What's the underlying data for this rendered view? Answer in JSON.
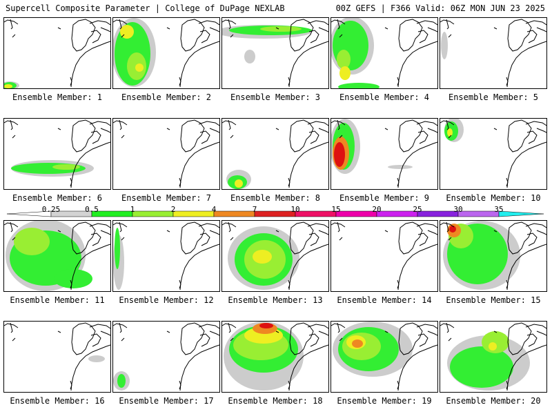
{
  "header": {
    "left": "Supercell Composite Parameter | College of DuPage NEXLAB",
    "right": "00Z GEFS | F366 Valid: 06Z MON JUN 23 2025"
  },
  "panels": [
    {
      "member": 1,
      "caption": "Ensemble Member: 1"
    },
    {
      "member": 2,
      "caption": "Ensemble Member: 2"
    },
    {
      "member": 3,
      "caption": "Ensemble Member: 3"
    },
    {
      "member": 4,
      "caption": "Ensemble Member: 4"
    },
    {
      "member": 5,
      "caption": "Ensemble Member: 5"
    },
    {
      "member": 6,
      "caption": "Ensemble Member: 6"
    },
    {
      "member": 7,
      "caption": "Ensemble Member: 7"
    },
    {
      "member": 8,
      "caption": "Ensemble Member: 8"
    },
    {
      "member": 9,
      "caption": "Ensemble Member: 9"
    },
    {
      "member": 10,
      "caption": "Ensemble Member: 10"
    },
    {
      "member": 11,
      "caption": "Ensemble Member: 11"
    },
    {
      "member": 12,
      "caption": "Ensemble Member: 12"
    },
    {
      "member": 13,
      "caption": "Ensemble Member: 13"
    },
    {
      "member": 14,
      "caption": "Ensemble Member: 14"
    },
    {
      "member": 15,
      "caption": "Ensemble Member: 15"
    },
    {
      "member": 16,
      "caption": "Ensemble Member: 16"
    },
    {
      "member": 17,
      "caption": "Ensemble Member: 17"
    },
    {
      "member": 18,
      "caption": "Ensemble Member: 18"
    },
    {
      "member": 19,
      "caption": "Ensemble Member: 19"
    },
    {
      "member": 20,
      "caption": "Ensemble Member: 20"
    }
  ],
  "colorbar": {
    "labels": [
      "0.25",
      "0.5",
      "1",
      "2",
      "4",
      "7",
      "10",
      "15",
      "20",
      "25",
      "30",
      "35"
    ],
    "colors": [
      "#d3d3d3",
      "#22ee22",
      "#99ee33",
      "#eeee22",
      "#ee8822",
      "#dd2222",
      "#ee1166",
      "#ee00aa",
      "#cc22ee",
      "#8822dd",
      "#bb66ee",
      "#22eeee"
    ]
  },
  "colors": {
    "gray": "#cccccc",
    "green": "#33ee33",
    "lightgreen": "#99ee33",
    "yellow": "#eeee22",
    "orange": "#ee8822",
    "red": "#dd1111"
  }
}
